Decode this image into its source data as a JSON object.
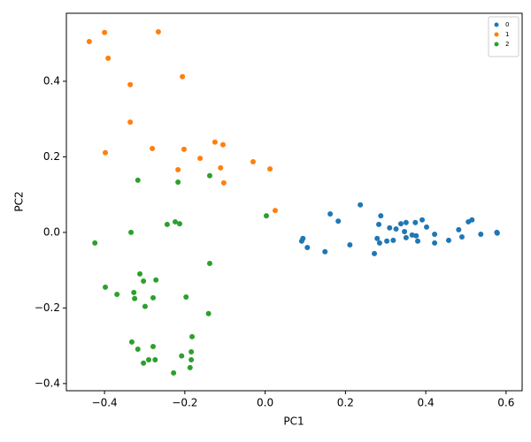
{
  "chart_data": {
    "type": "scatter",
    "xlabel": "PC1",
    "ylabel": "PC2",
    "xlim": [
      -0.495,
      0.64
    ],
    "ylim": [
      -0.419,
      0.58
    ],
    "xticks": [
      {
        "value": -0.4,
        "label": "−0.4"
      },
      {
        "value": -0.2,
        "label": "−0.2"
      },
      {
        "value": 0.0,
        "label": "0.0"
      },
      0.2,
      0.4,
      0.6
    ],
    "yticks": [
      {
        "value": -0.4,
        "label": "−0.4"
      },
      {
        "value": -0.2,
        "label": "−0.2"
      },
      {
        "value": 0.0,
        "label": "0.0"
      },
      0.2,
      0.4
    ],
    "legend": "upper right",
    "series": [
      {
        "name": "0",
        "color": "#1f77b4",
        "x": [
          0.094,
          0.091,
          0.105,
          0.149,
          0.162,
          0.182,
          0.211,
          0.237,
          0.272,
          0.288,
          0.283,
          0.279,
          0.285,
          0.303,
          0.31,
          0.319,
          0.326,
          0.338,
          0.347,
          0.351,
          0.351,
          0.366,
          0.374,
          0.376,
          0.38,
          0.391,
          0.402,
          0.422,
          0.422,
          0.457,
          0.482,
          0.49,
          0.506,
          0.515,
          0.537,
          0.577,
          0.578
        ],
        "values": [
          -0.016,
          -0.023,
          -0.04,
          -0.051,
          0.049,
          0.03,
          -0.033,
          0.073,
          -0.056,
          0.044,
          0.021,
          -0.016,
          -0.028,
          -0.023,
          0.012,
          -0.021,
          0.009,
          0.023,
          0.002,
          0.026,
          -0.014,
          -0.007,
          0.026,
          -0.009,
          -0.023,
          0.033,
          0.014,
          -0.005,
          -0.028,
          -0.021,
          0.007,
          -0.012,
          0.028,
          0.033,
          -0.005,
          0.0,
          -0.002
        ]
      },
      {
        "name": "1",
        "color": "#ff7f0e",
        "x": [
          -0.438,
          -0.4,
          -0.391,
          -0.266,
          -0.336,
          -0.206,
          -0.336,
          -0.398,
          -0.281,
          -0.202,
          -0.125,
          -0.105,
          -0.217,
          -0.162,
          -0.111,
          -0.103,
          -0.03,
          0.012,
          0.025
        ],
        "values": [
          0.505,
          0.529,
          0.461,
          0.531,
          0.391,
          0.412,
          0.292,
          0.211,
          0.222,
          0.22,
          0.239,
          0.232,
          0.166,
          0.196,
          0.171,
          0.131,
          0.187,
          0.168,
          0.058
        ]
      },
      {
        "name": "2",
        "color": "#2ca02c",
        "x": [
          -0.317,
          -0.217,
          -0.138,
          0.003,
          -0.424,
          -0.334,
          -0.244,
          -0.224,
          -0.213,
          -0.138,
          -0.398,
          -0.312,
          -0.303,
          -0.272,
          -0.369,
          -0.327,
          -0.325,
          -0.279,
          -0.299,
          -0.197,
          -0.141,
          -0.332,
          -0.317,
          -0.279,
          -0.182,
          -0.184,
          -0.208,
          -0.184,
          -0.29,
          -0.274,
          -0.303,
          -0.187,
          -0.228
        ],
        "values": [
          0.138,
          0.133,
          0.15,
          0.044,
          -0.028,
          0.0,
          0.021,
          0.028,
          0.023,
          -0.082,
          -0.145,
          -0.11,
          -0.129,
          -0.126,
          -0.164,
          -0.159,
          -0.175,
          -0.173,
          -0.196,
          -0.171,
          -0.215,
          -0.29,
          -0.309,
          -0.302,
          -0.276,
          -0.316,
          -0.327,
          -0.337,
          -0.337,
          -0.337,
          -0.346,
          -0.358,
          -0.372
        ]
      }
    ]
  }
}
